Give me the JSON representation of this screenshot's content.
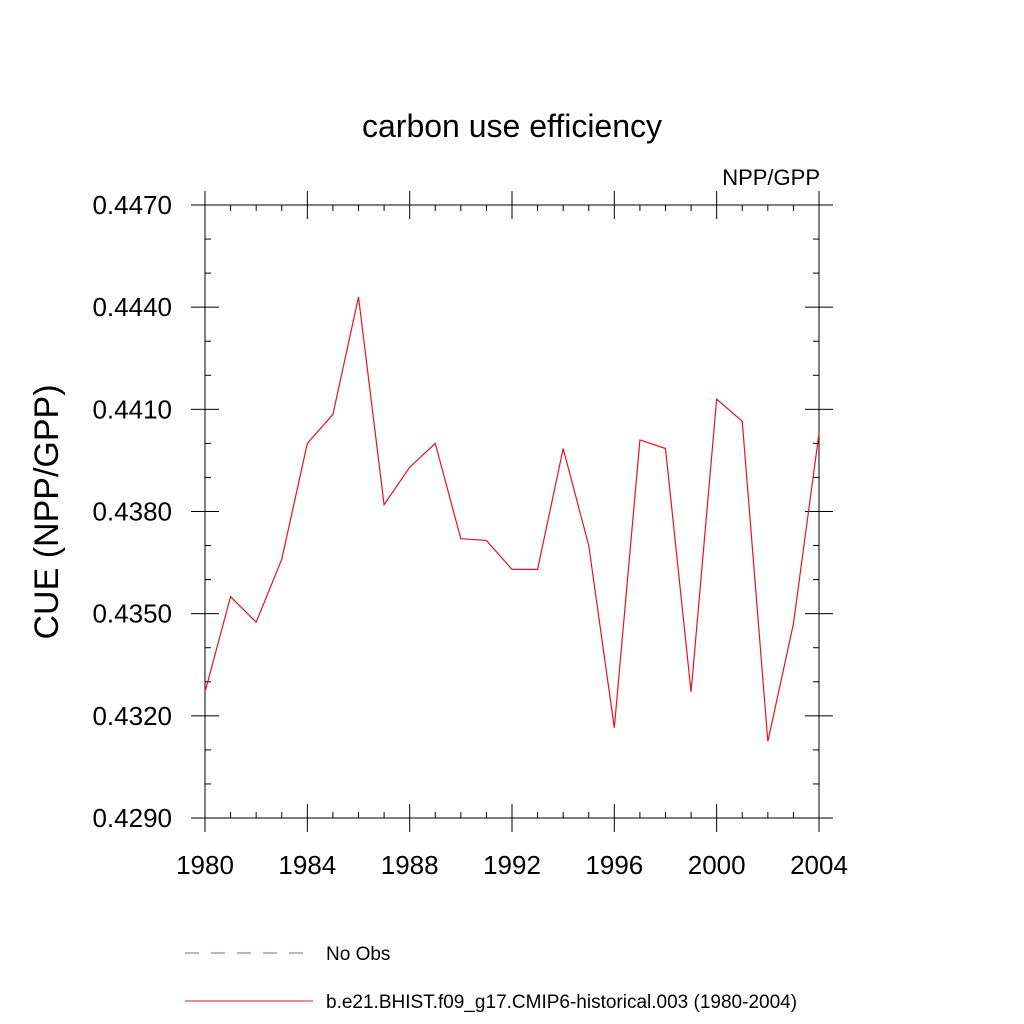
{
  "chart_data": {
    "type": "line",
    "title": "carbon use efficiency",
    "subtitle_right": "NPP/GPP",
    "xlabel": "",
    "ylabel": "CUE  (NPP/GPP)",
    "xlim": [
      1980,
      2004
    ],
    "ylim": [
      0.429,
      0.447
    ],
    "x_ticks": [
      "1980",
      "1984",
      "1988",
      "1992",
      "1996",
      "2000",
      "2004"
    ],
    "y_ticks": [
      "0.4290",
      "0.4320",
      "0.4350",
      "0.4380",
      "0.4410",
      "0.4440",
      "0.4470"
    ],
    "grid": false,
    "legend_position": "bottom",
    "legend": [
      {
        "label": "No Obs",
        "color": "#6a6ab5",
        "style": "dashed"
      },
      {
        "label": "b.e21.BHIST.f09_g17.CMIP6-historical.003 (1980-2004)",
        "color": "#e8111f",
        "style": "solid"
      }
    ],
    "x": [
      1980,
      1981,
      1982,
      1983,
      1984,
      1985,
      1986,
      1987,
      1988,
      1989,
      1990,
      1991,
      1992,
      1993,
      1994,
      1995,
      1996,
      1997,
      1998,
      1999,
      2000,
      2001,
      2002,
      2003,
      2004
    ],
    "series": [
      {
        "color": "#e8111f",
        "values": [
          0.4327,
          0.4355,
          0.43475,
          0.4366,
          0.44,
          0.44085,
          0.4443,
          0.4382,
          0.4393,
          0.44,
          0.4372,
          0.43715,
          0.4363,
          0.4363,
          0.43985,
          0.437,
          0.43165,
          0.4401,
          0.43985,
          0.4327,
          0.4413,
          0.44065,
          0.43125,
          0.4347,
          0.4403
        ]
      }
    ]
  }
}
